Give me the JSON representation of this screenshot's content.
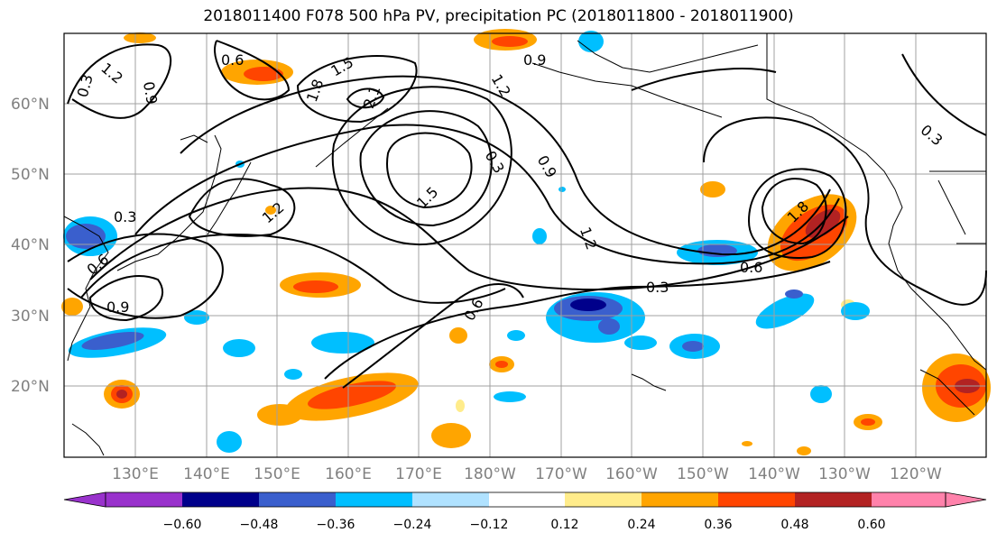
{
  "title": "2018011400 F078 500 hPa PV, precipitation PC (2018011800 - 2018011900)",
  "lat_labels": [
    "60°N",
    "50°N",
    "40°N",
    "30°N",
    "20°N"
  ],
  "lon_labels": [
    "130°E",
    "140°E",
    "150°E",
    "160°E",
    "170°E",
    "180°W",
    "170°W",
    "160°W",
    "150°W",
    "140°W",
    "130°W",
    "120°W"
  ],
  "contour_labels": [
    "0.6",
    "1.2",
    "1.5",
    "0.9",
    "1.8",
    "2.1",
    "0.9",
    "1.2",
    "0.3",
    "0.9",
    "1.5",
    "1.2",
    "0.3",
    "1.2",
    "0.6",
    "0.3",
    "0.6",
    "0.9",
    "0.3",
    "0.6",
    "1.8",
    "0.3"
  ],
  "colorbar": {
    "ticks": [
      "−0.60",
      "−0.48",
      "−0.36",
      "−0.24",
      "−0.12",
      "0.12",
      "0.24",
      "0.36",
      "0.48",
      "0.60"
    ],
    "colors": [
      "#9932cc",
      "#00008b",
      "#3a5fcd",
      "#00bfff",
      "#b0e2ff",
      "#ffffff",
      "#ffec8b",
      "#ffa500",
      "#ff4500",
      "#b22222",
      "#ff82ab"
    ]
  }
}
